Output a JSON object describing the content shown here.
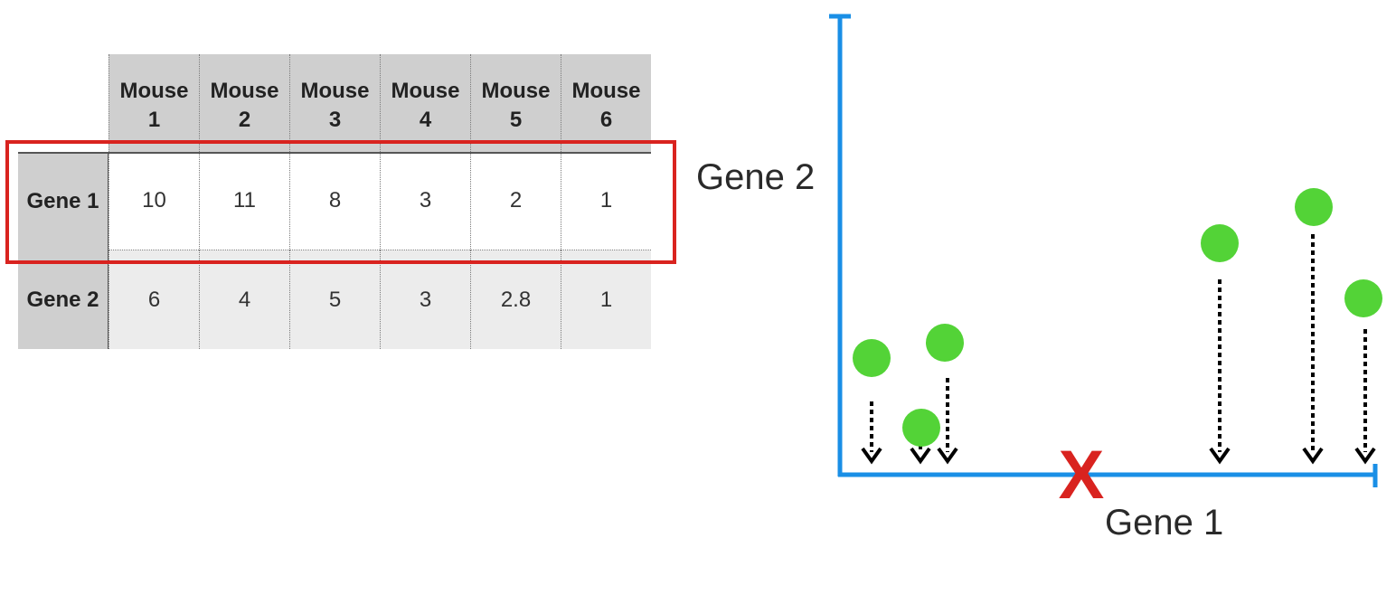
{
  "table": {
    "columns": [
      {
        "line1": "Mouse",
        "line2": "1"
      },
      {
        "line1": "Mouse",
        "line2": "2"
      },
      {
        "line1": "Mouse",
        "line2": "3"
      },
      {
        "line1": "Mouse",
        "line2": "4"
      },
      {
        "line1": "Mouse",
        "line2": "5"
      },
      {
        "line1": "Mouse",
        "line2": "6"
      }
    ],
    "rows": [
      {
        "label": "Gene 1",
        "values": [
          "10",
          "11",
          "8",
          "3",
          "2",
          "1"
        ],
        "highlighted": true
      },
      {
        "label": "Gene 2",
        "values": [
          "6",
          "4",
          "5",
          "3",
          "2.8",
          "1"
        ],
        "highlighted": false
      }
    ]
  },
  "graph": {
    "x_label": "Gene 1",
    "y_label": "Gene 2",
    "x_marker_label": "X",
    "point_color": "#53d337",
    "axis_color": "#1a8fe6",
    "marker_color": "#d9231f"
  }
}
